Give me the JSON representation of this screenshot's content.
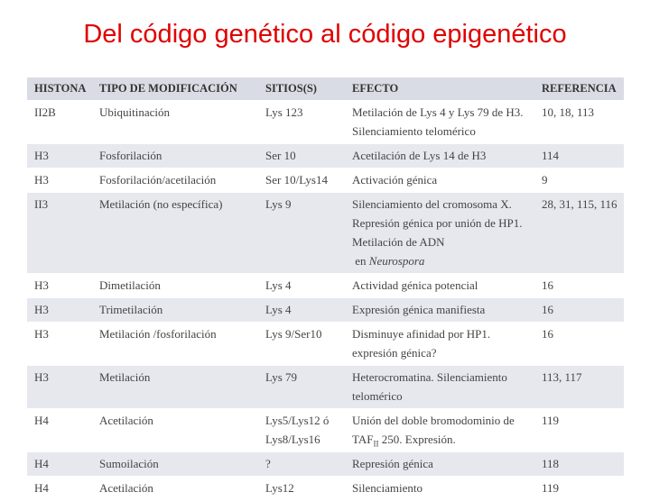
{
  "title": "Del código genético al código epigenético",
  "columns": [
    "HISTONA",
    "TIPO DE MODIFICACIÓN",
    "SITIOS(S)",
    "EFECTO",
    "REFERENCIA"
  ],
  "rows": [
    {
      "histona": "II2B",
      "tipo": "Ubiquitinación",
      "sitios": "Lys 123",
      "efecto": "Metilación de Lys 4 y Lys 79 de H3. Silenciamiento telomérico",
      "referencia": "10, 18, 113"
    },
    {
      "histona": "H3",
      "tipo": "Fosforilación",
      "sitios": "Ser 10",
      "efecto": "Acetilación de Lys 14 de H3",
      "referencia": "114"
    },
    {
      "histona": "H3",
      "tipo": "Fosforilación/acetilación",
      "sitios": "Ser 10/Lys14",
      "efecto": "Activación génica",
      "referencia": "9"
    },
    {
      "histona": "II3",
      "tipo": "Metilación (no específica)",
      "sitios": "Lys 9",
      "efecto": "Silenciamiento del cromosoma X. Represión génica por unión de HP1. Metilación de ADN",
      "efecto_extra": "en",
      "efecto_italic": "Neurospora",
      "referencia": "28, 31, 115, 116"
    },
    {
      "histona": "H3",
      "tipo": "Dimetilación",
      "sitios": "Lys 4",
      "efecto": "Actividad génica potencial",
      "referencia": "16"
    },
    {
      "histona": "H3",
      "tipo": "Trimetilación",
      "sitios": "Lys 4",
      "efecto": "Expresión génica manifiesta",
      "referencia": "16"
    },
    {
      "histona": "H3",
      "tipo": "Metilación /fosforilación",
      "sitios": "Lys 9/Ser10",
      "efecto": "Disminuye afinidad por HP1. expresión génica?",
      "referencia": "16"
    },
    {
      "histona": "H3",
      "tipo": "Metilación",
      "sitios": "Lys 79",
      "efecto": "Heterocromatina. Silenciamiento telomérico",
      "referencia": "113, 117"
    },
    {
      "histona": "H4",
      "tipo": "Acetilación",
      "sitios": "Lys5/Lys12 ó Lys8/Lys16",
      "efecto_pre": "Unión del doble bromodominio de TAF",
      "efecto_sub": "II",
      "efecto_post": " 250. Expresión.",
      "referencia": "119"
    },
    {
      "histona": "H4",
      "tipo": "Sumoilación",
      "sitios": "?",
      "efecto": "Represión génica",
      "referencia": "118"
    },
    {
      "histona": "H4",
      "tipo": "Acetilación",
      "sitios": "Lys12",
      "efecto": "Silenciamiento",
      "referencia": "119"
    }
  ]
}
